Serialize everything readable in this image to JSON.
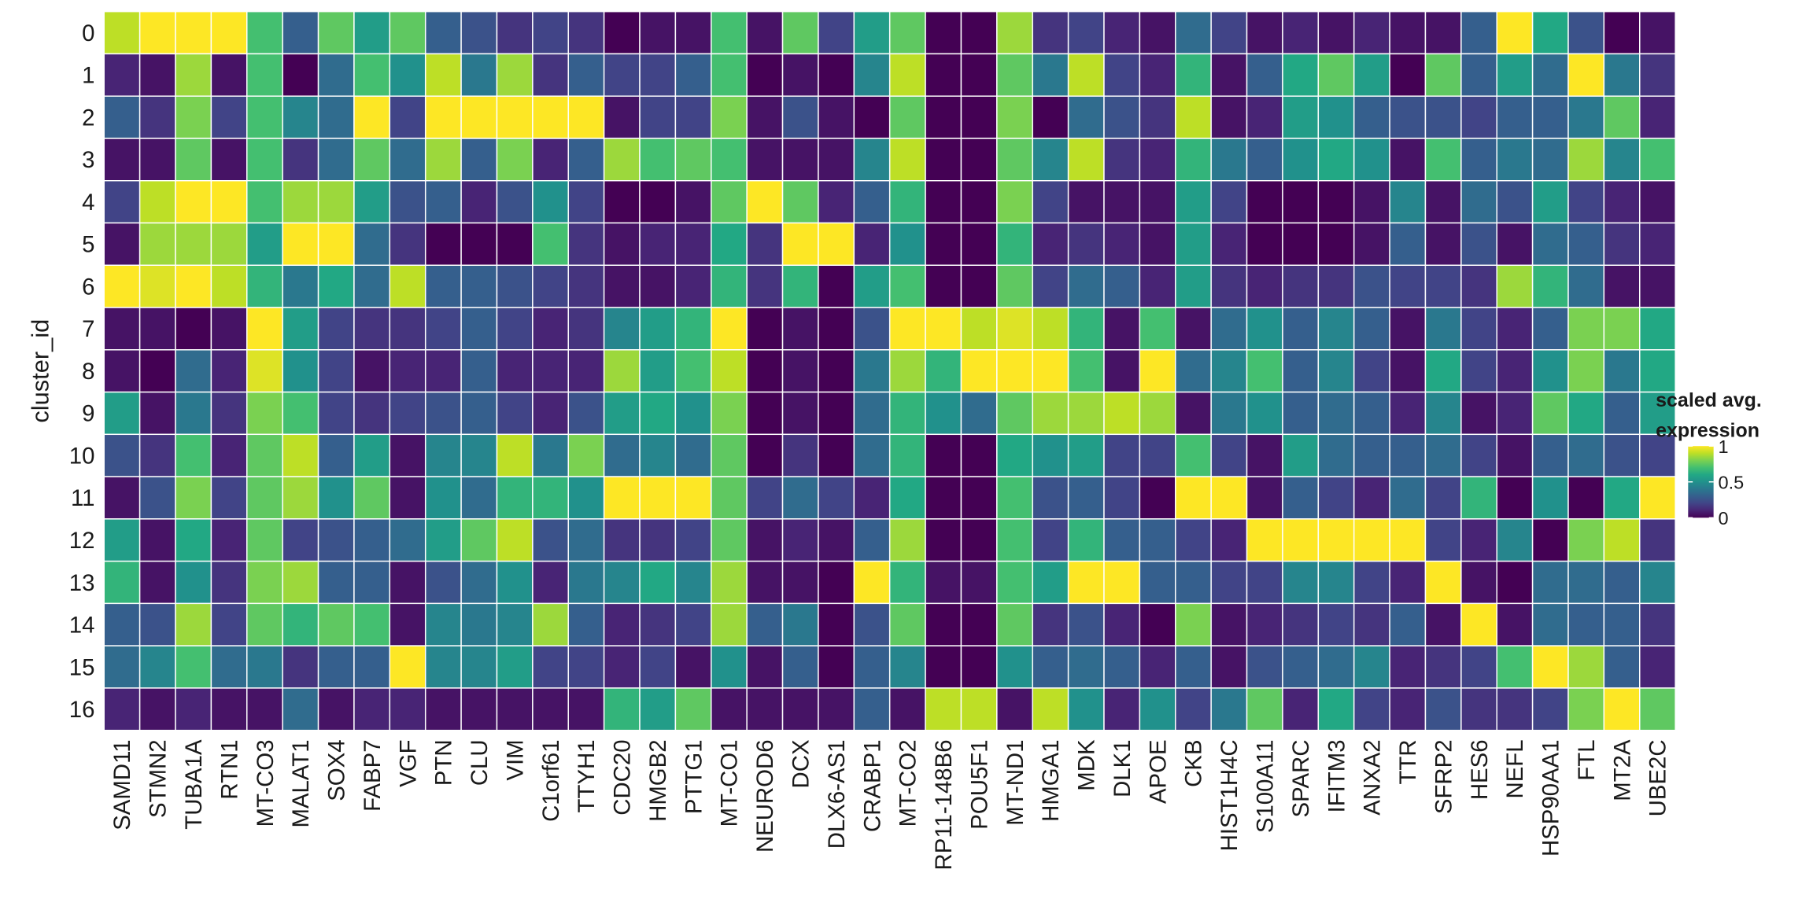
{
  "chart_data": {
    "type": "heatmap",
    "colormap": "viridis",
    "ylabel": "cluster_id",
    "categories": [
      "SAMD11",
      "STMN2",
      "TUBA1A",
      "RTN1",
      "MT-CO3",
      "MALAT1",
      "SOX4",
      "FABP7",
      "VGF",
      "PTN",
      "CLU",
      "VIM",
      "C1orf61",
      "TTYH1",
      "CDC20",
      "HMGB2",
      "PTTG1",
      "MT-CO1",
      "NEUROD6",
      "DCX",
      "DLX6-AS1",
      "CRABP1",
      "MT-CO2",
      "RP11-148B6",
      "POU5F1",
      "MT-ND1",
      "HMGA1",
      "MDK",
      "DLK1",
      "APOE",
      "CKB",
      "HIST1H4C",
      "S100A11",
      "SPARC",
      "IFITM3",
      "ANXA2",
      "TTR",
      "SFRP2",
      "HES6",
      "NEFL",
      "HSP90AA1",
      "FTL",
      "MT2A",
      "UBE2C"
    ],
    "y_categories": [
      "0",
      "1",
      "2",
      "3",
      "4",
      "5",
      "6",
      "7",
      "8",
      "9",
      "10",
      "11",
      "12",
      "13",
      "14",
      "15",
      "16"
    ],
    "values": [
      [
        0.9,
        1,
        1,
        1,
        0.7,
        0.3,
        0.75,
        0.55,
        0.75,
        0.3,
        0.25,
        0.15,
        0.2,
        0.15,
        0,
        0.05,
        0.05,
        0.7,
        0.05,
        0.75,
        0.2,
        0.55,
        0.75,
        0,
        0,
        0.85,
        0.15,
        0.2,
        0.1,
        0.05,
        0.35,
        0.2,
        0.05,
        0.1,
        0.05,
        0.1,
        0.05,
        0.05,
        0.3,
        1,
        0.6,
        0.25,
        0,
        0.05
      ],
      [
        0.1,
        0.05,
        0.85,
        0.05,
        0.7,
        0,
        0.35,
        0.7,
        0.5,
        0.9,
        0.4,
        0.85,
        0.15,
        0.3,
        0.2,
        0.2,
        0.3,
        0.7,
        0,
        0.05,
        0,
        0.45,
        0.9,
        0,
        0,
        0.75,
        0.4,
        0.9,
        0.2,
        0.1,
        0.65,
        0.05,
        0.3,
        0.6,
        0.75,
        0.55,
        0,
        0.75,
        0.3,
        0.55,
        0.35,
        1,
        0.4,
        0.15
      ],
      [
        0.3,
        0.15,
        0.8,
        0.2,
        0.7,
        0.45,
        0.35,
        1,
        0.2,
        1,
        1,
        1,
        1,
        1,
        0.05,
        0.2,
        0.2,
        0.8,
        0.05,
        0.25,
        0.05,
        0,
        0.75,
        0,
        0,
        0.8,
        0,
        0.35,
        0.25,
        0.15,
        0.9,
        0.05,
        0.1,
        0.55,
        0.5,
        0.3,
        0.25,
        0.25,
        0.2,
        0.3,
        0.3,
        0.4,
        0.75,
        0.1
      ],
      [
        0.05,
        0.05,
        0.75,
        0.05,
        0.7,
        0.15,
        0.35,
        0.75,
        0.35,
        0.85,
        0.3,
        0.8,
        0.1,
        0.3,
        0.85,
        0.7,
        0.75,
        0.7,
        0.05,
        0.05,
        0.05,
        0.45,
        0.9,
        0,
        0,
        0.75,
        0.45,
        0.9,
        0.15,
        0.1,
        0.65,
        0.4,
        0.3,
        0.5,
        0.6,
        0.5,
        0.05,
        0.7,
        0.3,
        0.4,
        0.35,
        0.85,
        0.45,
        0.7
      ],
      [
        0.2,
        0.9,
        1,
        1,
        0.7,
        0.85,
        0.85,
        0.55,
        0.25,
        0.3,
        0.1,
        0.25,
        0.5,
        0.2,
        0,
        0,
        0.05,
        0.75,
        1,
        0.75,
        0.1,
        0.3,
        0.65,
        0,
        0,
        0.8,
        0.2,
        0.05,
        0.05,
        0.05,
        0.55,
        0.2,
        0,
        0,
        0,
        0.05,
        0.45,
        0.05,
        0.35,
        0.25,
        0.55,
        0.2,
        0.1,
        0.05
      ],
      [
        0.05,
        0.85,
        0.85,
        0.85,
        0.55,
        1,
        1,
        0.35,
        0.15,
        0,
        0,
        0,
        0.7,
        0.15,
        0.05,
        0.1,
        0.1,
        0.6,
        0.15,
        1,
        1,
        0.1,
        0.5,
        0,
        0,
        0.65,
        0.1,
        0.15,
        0.1,
        0.05,
        0.55,
        0.1,
        0,
        0,
        0,
        0.05,
        0.3,
        0.05,
        0.25,
        0.05,
        0.35,
        0.3,
        0.15,
        0.1
      ],
      [
        1,
        0.95,
        1,
        0.9,
        0.65,
        0.4,
        0.6,
        0.35,
        0.9,
        0.3,
        0.3,
        0.25,
        0.2,
        0.15,
        0.05,
        0.05,
        0.1,
        0.65,
        0.15,
        0.65,
        0,
        0.55,
        0.7,
        0,
        0,
        0.75,
        0.2,
        0.35,
        0.3,
        0.1,
        0.55,
        0.15,
        0.1,
        0.15,
        0.15,
        0.25,
        0.2,
        0.2,
        0.15,
        0.85,
        0.65,
        0.35,
        0.05,
        0.05
      ],
      [
        0.05,
        0.05,
        0,
        0.05,
        1,
        0.55,
        0.2,
        0.15,
        0.15,
        0.2,
        0.3,
        0.2,
        0.1,
        0.15,
        0.45,
        0.55,
        0.65,
        1,
        0,
        0.05,
        0,
        0.25,
        1,
        1,
        0.9,
        0.95,
        0.9,
        0.65,
        0.05,
        0.7,
        0.05,
        0.35,
        0.5,
        0.3,
        0.45,
        0.3,
        0.05,
        0.4,
        0.2,
        0.1,
        0.3,
        0.8,
        0.8,
        0.6
      ],
      [
        0.05,
        0,
        0.35,
        0.1,
        0.95,
        0.5,
        0.2,
        0.05,
        0.1,
        0.1,
        0.3,
        0.1,
        0.1,
        0.1,
        0.85,
        0.55,
        0.7,
        0.9,
        0,
        0.05,
        0,
        0.4,
        0.85,
        0.65,
        1,
        1,
        1,
        0.7,
        0.05,
        1,
        0.35,
        0.45,
        0.7,
        0.3,
        0.45,
        0.2,
        0.05,
        0.6,
        0.2,
        0.1,
        0.5,
        0.8,
        0.4,
        0.6
      ],
      [
        0.55,
        0.05,
        0.4,
        0.15,
        0.8,
        0.7,
        0.2,
        0.15,
        0.2,
        0.25,
        0.3,
        0.2,
        0.1,
        0.25,
        0.55,
        0.6,
        0.5,
        0.8,
        0,
        0.05,
        0,
        0.35,
        0.65,
        0.5,
        0.35,
        0.75,
        0.85,
        0.85,
        0.9,
        0.85,
        0.05,
        0.4,
        0.5,
        0.3,
        0.35,
        0.3,
        0.1,
        0.45,
        0.05,
        0.1,
        0.75,
        0.6,
        0.3,
        0.55
      ],
      [
        0.25,
        0.15,
        0.7,
        0.1,
        0.75,
        0.9,
        0.3,
        0.55,
        0.05,
        0.45,
        0.45,
        0.9,
        0.4,
        0.8,
        0.35,
        0.45,
        0.35,
        0.75,
        0,
        0.15,
        0,
        0.35,
        0.65,
        0,
        0,
        0.6,
        0.5,
        0.55,
        0.2,
        0.2,
        0.7,
        0.2,
        0.05,
        0.55,
        0.35,
        0.3,
        0.3,
        0.35,
        0.2,
        0.05,
        0.3,
        0.35,
        0.25,
        0.2
      ],
      [
        0.05,
        0.25,
        0.8,
        0.2,
        0.75,
        0.85,
        0.5,
        0.75,
        0.05,
        0.5,
        0.35,
        0.65,
        0.65,
        0.5,
        1,
        1,
        1,
        0.75,
        0.2,
        0.35,
        0.2,
        0.1,
        0.6,
        0,
        0,
        0.7,
        0.25,
        0.3,
        0.2,
        0,
        1,
        1,
        0.05,
        0.3,
        0.2,
        0.1,
        0.35,
        0.2,
        0.65,
        0,
        0.5,
        0,
        0.6,
        1
      ],
      [
        0.55,
        0.05,
        0.6,
        0.1,
        0.75,
        0.2,
        0.25,
        0.3,
        0.35,
        0.55,
        0.75,
        0.9,
        0.25,
        0.35,
        0.15,
        0.15,
        0.2,
        0.75,
        0.05,
        0.1,
        0.05,
        0.3,
        0.85,
        0,
        0,
        0.7,
        0.2,
        0.65,
        0.3,
        0.3,
        0.2,
        0.1,
        1,
        1,
        1,
        1,
        1,
        0.2,
        0.1,
        0.45,
        0,
        0.8,
        0.9,
        0.15
      ],
      [
        0.65,
        0.05,
        0.5,
        0.15,
        0.8,
        0.85,
        0.3,
        0.3,
        0.05,
        0.25,
        0.35,
        0.5,
        0.1,
        0.4,
        0.45,
        0.6,
        0.45,
        0.85,
        0.05,
        0.05,
        0,
        1,
        0.65,
        0.05,
        0.05,
        0.7,
        0.55,
        1,
        1,
        0.3,
        0.3,
        0.2,
        0.2,
        0.45,
        0.45,
        0.2,
        0.1,
        1,
        0.05,
        0,
        0.35,
        0.35,
        0.3,
        0.45
      ],
      [
        0.3,
        0.25,
        0.85,
        0.2,
        0.75,
        0.65,
        0.75,
        0.7,
        0.05,
        0.45,
        0.4,
        0.45,
        0.85,
        0.3,
        0.1,
        0.15,
        0.2,
        0.85,
        0.3,
        0.4,
        0,
        0.25,
        0.75,
        0,
        0,
        0.75,
        0.15,
        0.25,
        0.1,
        0,
        0.8,
        0.05,
        0.1,
        0.15,
        0.2,
        0.15,
        0.3,
        0.05,
        1,
        0.05,
        0.35,
        0.3,
        0.3,
        0.15
      ],
      [
        0.35,
        0.45,
        0.7,
        0.35,
        0.4,
        0.15,
        0.3,
        0.3,
        1,
        0.45,
        0.45,
        0.55,
        0.2,
        0.2,
        0.1,
        0.2,
        0.05,
        0.5,
        0.05,
        0.3,
        0,
        0.3,
        0.45,
        0,
        0,
        0.5,
        0.3,
        0.35,
        0.3,
        0.1,
        0.3,
        0.05,
        0.25,
        0.3,
        0.35,
        0.45,
        0.1,
        0.15,
        0.2,
        0.7,
        1,
        0.85,
        0.3,
        0.1
      ],
      [
        0.1,
        0.05,
        0.1,
        0.05,
        0.05,
        0.35,
        0.05,
        0.1,
        0.1,
        0.05,
        0.05,
        0.05,
        0.05,
        0.05,
        0.65,
        0.55,
        0.75,
        0.05,
        0.05,
        0.05,
        0.05,
        0.3,
        0.05,
        0.9,
        0.9,
        0.05,
        0.9,
        0.5,
        0.1,
        0.5,
        0.2,
        0.4,
        0.75,
        0.1,
        0.6,
        0.2,
        0.1,
        0.25,
        0.15,
        0.15,
        0.2,
        0.8,
        1,
        0.75
      ]
    ],
    "clim": [
      0,
      1
    ],
    "legend": {
      "title": [
        "scaled avg.",
        "expression"
      ],
      "ticks": [
        0,
        0.5,
        1
      ]
    }
  }
}
